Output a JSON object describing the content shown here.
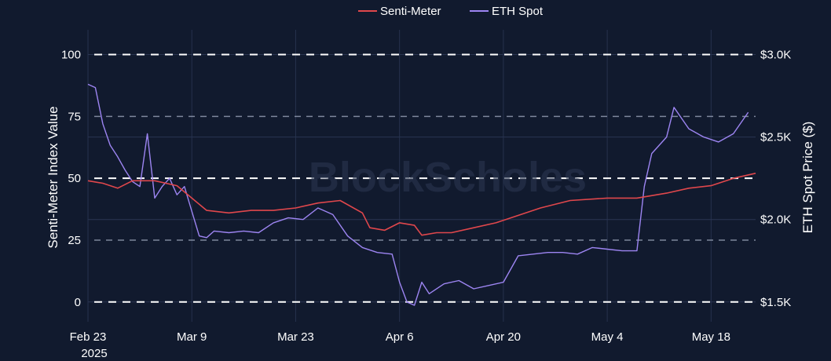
{
  "watermark": "BlockScholes",
  "chart_data": {
    "type": "line",
    "title": "",
    "legend_position": "top-center",
    "y_left": {
      "label": "Senti-Meter Index Value",
      "range": [
        -8,
        110
      ],
      "ticks": [
        0,
        25,
        50,
        75,
        100
      ],
      "tick_labels": [
        "0",
        "25",
        "50",
        "75",
        "100"
      ]
    },
    "y_right": {
      "label": "ETH Spot Price ($)",
      "range": [
        1500,
        3000
      ],
      "ticks": [
        1500,
        2000,
        2500,
        3000
      ],
      "tick_labels": [
        "$1.5K",
        "$2.0K",
        "$2.5K",
        "$3.0K"
      ]
    },
    "x_axis": {
      "range": [
        "2025-02-23",
        "2025-05-24"
      ],
      "ticks": [
        "2025-02-23",
        "2025-03-09",
        "2025-03-23",
        "2025-04-06",
        "2025-04-20",
        "2025-05-04",
        "2025-05-18"
      ],
      "tick_labels": [
        "Feb 23",
        "Mar 9",
        "Mar 23",
        "Apr 6",
        "Apr 20",
        "May 4",
        "May 18"
      ],
      "year_label": "2025"
    },
    "series": [
      {
        "name": "Senti-Meter",
        "axis": "left",
        "color": "#e0474c",
        "points": [
          [
            "2025-02-23",
            49
          ],
          [
            "2025-02-25",
            48
          ],
          [
            "2025-02-27",
            46
          ],
          [
            "2025-03-01",
            49
          ],
          [
            "2025-03-04",
            49
          ],
          [
            "2025-03-07",
            47
          ],
          [
            "2025-03-09",
            42
          ],
          [
            "2025-03-11",
            37
          ],
          [
            "2025-03-14",
            36
          ],
          [
            "2025-03-17",
            37
          ],
          [
            "2025-03-20",
            37
          ],
          [
            "2025-03-23",
            38
          ],
          [
            "2025-03-26",
            40
          ],
          [
            "2025-03-29",
            41
          ],
          [
            "2025-04-01",
            36
          ],
          [
            "2025-04-02",
            30
          ],
          [
            "2025-04-04",
            29
          ],
          [
            "2025-04-06",
            32
          ],
          [
            "2025-04-08",
            31
          ],
          [
            "2025-04-09",
            27
          ],
          [
            "2025-04-11",
            28
          ],
          [
            "2025-04-13",
            28
          ],
          [
            "2025-04-16",
            30
          ],
          [
            "2025-04-19",
            32
          ],
          [
            "2025-04-21",
            34
          ],
          [
            "2025-04-25",
            38
          ],
          [
            "2025-04-29",
            41
          ],
          [
            "2025-05-04",
            42
          ],
          [
            "2025-05-08",
            42
          ],
          [
            "2025-05-12",
            44
          ],
          [
            "2025-05-15",
            46
          ],
          [
            "2025-05-18",
            47
          ],
          [
            "2025-05-21",
            50
          ],
          [
            "2025-05-24",
            52
          ]
        ]
      },
      {
        "name": "ETH Spot",
        "axis": "right",
        "color": "#9d85f2",
        "points": [
          [
            "2025-02-23",
            2820
          ],
          [
            "2025-02-24",
            2800
          ],
          [
            "2025-02-25",
            2580
          ],
          [
            "2025-02-26",
            2450
          ],
          [
            "2025-02-27",
            2380
          ],
          [
            "2025-02-28",
            2300
          ],
          [
            "2025-03-01",
            2230
          ],
          [
            "2025-03-02",
            2200
          ],
          [
            "2025-03-03",
            2520
          ],
          [
            "2025-03-04",
            2130
          ],
          [
            "2025-03-05",
            2200
          ],
          [
            "2025-03-06",
            2250
          ],
          [
            "2025-03-07",
            2150
          ],
          [
            "2025-03-08",
            2200
          ],
          [
            "2025-03-09",
            2050
          ],
          [
            "2025-03-10",
            1900
          ],
          [
            "2025-03-11",
            1890
          ],
          [
            "2025-03-12",
            1930
          ],
          [
            "2025-03-14",
            1920
          ],
          [
            "2025-03-16",
            1930
          ],
          [
            "2025-03-18",
            1920
          ],
          [
            "2025-03-20",
            1980
          ],
          [
            "2025-03-22",
            2010
          ],
          [
            "2025-03-24",
            2000
          ],
          [
            "2025-03-26",
            2070
          ],
          [
            "2025-03-28",
            2030
          ],
          [
            "2025-03-30",
            1900
          ],
          [
            "2025-04-01",
            1830
          ],
          [
            "2025-04-03",
            1800
          ],
          [
            "2025-04-05",
            1790
          ],
          [
            "2025-04-06",
            1620
          ],
          [
            "2025-04-07",
            1500
          ],
          [
            "2025-04-08",
            1480
          ],
          [
            "2025-04-09",
            1620
          ],
          [
            "2025-04-10",
            1550
          ],
          [
            "2025-04-12",
            1610
          ],
          [
            "2025-04-14",
            1630
          ],
          [
            "2025-04-16",
            1580
          ],
          [
            "2025-04-18",
            1600
          ],
          [
            "2025-04-20",
            1620
          ],
          [
            "2025-04-22",
            1780
          ],
          [
            "2025-04-24",
            1790
          ],
          [
            "2025-04-26",
            1800
          ],
          [
            "2025-04-28",
            1800
          ],
          [
            "2025-04-30",
            1790
          ],
          [
            "2025-05-02",
            1830
          ],
          [
            "2025-05-04",
            1820
          ],
          [
            "2025-05-06",
            1810
          ],
          [
            "2025-05-08",
            1810
          ],
          [
            "2025-05-09",
            2200
          ],
          [
            "2025-05-10",
            2400
          ],
          [
            "2025-05-12",
            2500
          ],
          [
            "2025-05-13",
            2680
          ],
          [
            "2025-05-15",
            2550
          ],
          [
            "2025-05-17",
            2500
          ],
          [
            "2025-05-19",
            2470
          ],
          [
            "2025-05-21",
            2520
          ],
          [
            "2025-05-23",
            2650
          ]
        ]
      }
    ]
  }
}
